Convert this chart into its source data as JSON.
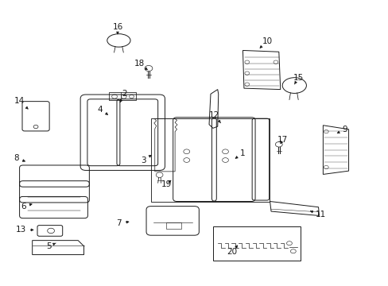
{
  "bg_color": "#ffffff",
  "line_color": "#1a1a1a",
  "fig_width": 4.89,
  "fig_height": 3.6,
  "dpi": 100,
  "lw": 0.7,
  "font_size": 7.5,
  "labels": {
    "1": [
      0.625,
      0.465,
      0.6,
      0.44
    ],
    "2": [
      0.32,
      0.672,
      0.308,
      0.642
    ],
    "3": [
      0.368,
      0.44,
      0.395,
      0.462
    ],
    "4": [
      0.257,
      0.618,
      0.278,
      0.598
    ],
    "5": [
      0.125,
      0.138,
      0.148,
      0.152
    ],
    "6": [
      0.06,
      0.278,
      0.088,
      0.288
    ],
    "7": [
      0.305,
      0.218,
      0.338,
      0.225
    ],
    "8": [
      0.04,
      0.448,
      0.07,
      0.432
    ],
    "9": [
      0.888,
      0.548,
      0.862,
      0.53
    ],
    "10": [
      0.688,
      0.858,
      0.668,
      0.832
    ],
    "11": [
      0.825,
      0.248,
      0.798,
      0.262
    ],
    "12": [
      0.552,
      0.598,
      0.568,
      0.57
    ],
    "13": [
      0.052,
      0.195,
      0.092,
      0.195
    ],
    "14": [
      0.048,
      0.648,
      0.072,
      0.618
    ],
    "15": [
      0.768,
      0.728,
      0.758,
      0.706
    ],
    "16": [
      0.302,
      0.908,
      0.302,
      0.88
    ],
    "17": [
      0.728,
      0.51,
      0.718,
      0.49
    ],
    "18": [
      0.358,
      0.778,
      0.38,
      0.756
    ],
    "19": [
      0.428,
      0.355,
      0.445,
      0.375
    ],
    "20": [
      0.598,
      0.118,
      0.612,
      0.142
    ]
  }
}
